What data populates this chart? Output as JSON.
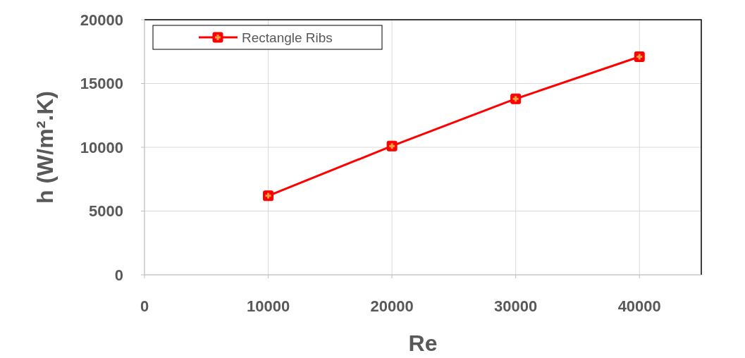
{
  "chart_data": {
    "type": "line",
    "xlabel": "Re",
    "ylabel": "h (W/m².K)",
    "x": [
      10000,
      20000,
      30000,
      40000
    ],
    "series": [
      {
        "name": "Rectangle Ribs",
        "color": "#ff0000",
        "values": [
          6200,
          10100,
          13800,
          17100
        ]
      }
    ],
    "xlim": [
      0,
      45000
    ],
    "xticks": [
      0,
      10000,
      20000,
      30000,
      40000
    ],
    "ylim": [
      0,
      20000
    ],
    "yticks": [
      0,
      5000,
      10000,
      15000,
      20000
    ],
    "grid": true,
    "legend": "top left",
    "marker": "square",
    "line_style": "solid"
  }
}
